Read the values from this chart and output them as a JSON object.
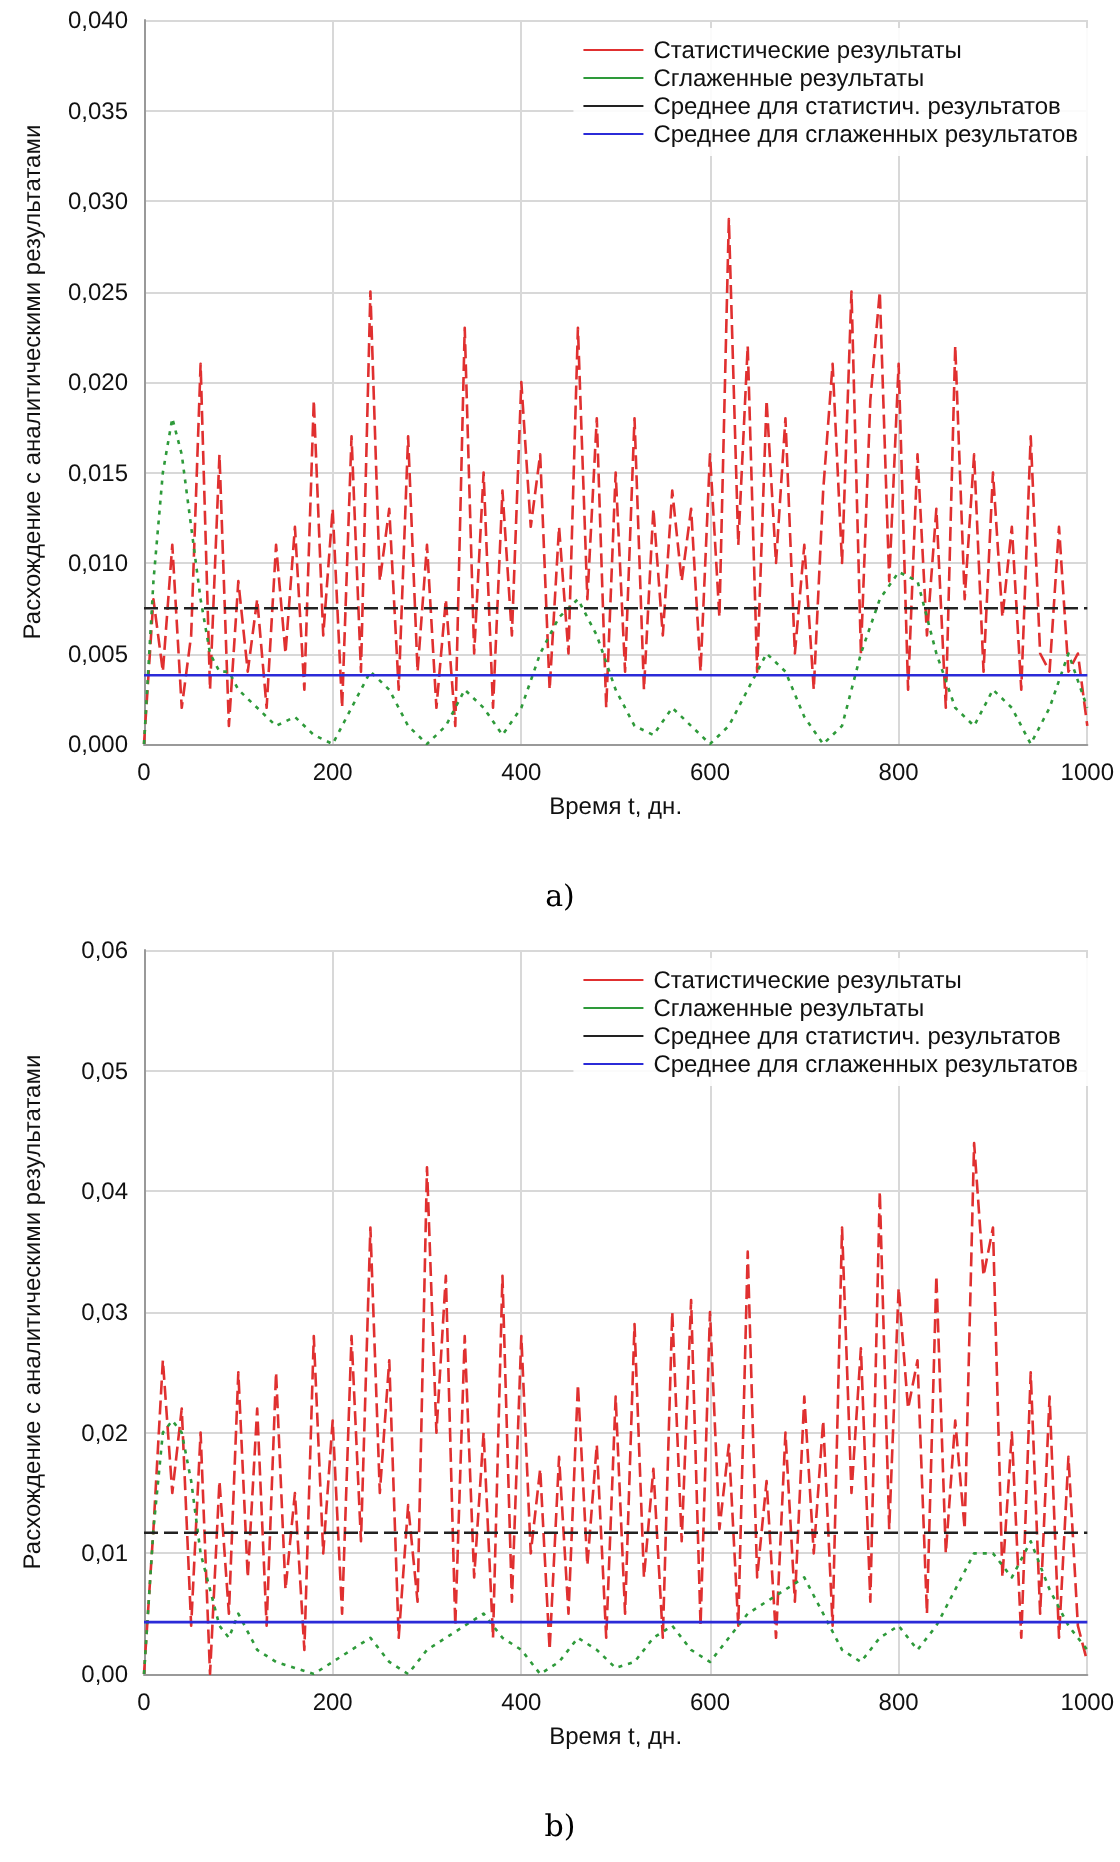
{
  "chart_data": [
    {
      "type": "line",
      "xlabel": "Время t, дн.",
      "ylabel": "Расхождение с аналитическими результатами",
      "annotations": [
        "a)"
      ],
      "xlim": [
        0,
        1000
      ],
      "xticks": [
        0,
        200,
        400,
        600,
        800,
        1000
      ],
      "ylim": [
        0,
        0.04
      ],
      "yticks": [
        {
          "value": 0,
          "label": "0,000"
        },
        {
          "value": 0.005,
          "label": "0,005"
        },
        {
          "value": 0.01,
          "label": "0,010"
        },
        {
          "value": 0.015,
          "label": "0,015"
        },
        {
          "value": 0.02,
          "label": "0,020"
        },
        {
          "value": 0.025,
          "label": "0,025"
        },
        {
          "value": 0.03,
          "label": "0,030"
        },
        {
          "value": 0.035,
          "label": "0,035"
        },
        {
          "value": 0.04,
          "label": "0,040"
        }
      ],
      "grid": true,
      "legend": "top right",
      "marker": "none",
      "series": [
        {
          "name": "Статистические результаты",
          "color": "#e03030",
          "line_style": "dashed",
          "x": [
            0,
            10,
            20,
            30,
            40,
            50,
            60,
            70,
            80,
            90,
            100,
            110,
            120,
            130,
            140,
            150,
            160,
            170,
            180,
            190,
            200,
            210,
            220,
            230,
            240,
            250,
            260,
            270,
            280,
            290,
            300,
            310,
            320,
            330,
            340,
            350,
            360,
            370,
            380,
            390,
            400,
            410,
            420,
            430,
            440,
            450,
            460,
            470,
            480,
            490,
            500,
            510,
            520,
            530,
            540,
            550,
            560,
            570,
            580,
            590,
            600,
            610,
            620,
            630,
            640,
            650,
            660,
            670,
            680,
            690,
            700,
            710,
            720,
            730,
            740,
            750,
            760,
            770,
            780,
            790,
            800,
            810,
            820,
            830,
            840,
            850,
            860,
            870,
            880,
            890,
            900,
            910,
            920,
            930,
            940,
            950,
            960,
            970,
            980,
            990,
            1000
          ],
          "values": [
            0,
            0.008,
            0.004,
            0.011,
            0.002,
            0.006,
            0.021,
            0.003,
            0.016,
            0.001,
            0.009,
            0.004,
            0.008,
            0.002,
            0.011,
            0.005,
            0.012,
            0.003,
            0.019,
            0.006,
            0.013,
            0.002,
            0.017,
            0.004,
            0.025,
            0.009,
            0.013,
            0.003,
            0.017,
            0.004,
            0.011,
            0.002,
            0.008,
            0.001,
            0.023,
            0.005,
            0.015,
            0.002,
            0.014,
            0.006,
            0.02,
            0.012,
            0.016,
            0.003,
            0.012,
            0.005,
            0.023,
            0.008,
            0.018,
            0.002,
            0.015,
            0.004,
            0.018,
            0.003,
            0.013,
            0.006,
            0.014,
            0.009,
            0.013,
            0.004,
            0.016,
            0.007,
            0.029,
            0.011,
            0.022,
            0.004,
            0.019,
            0.01,
            0.018,
            0.005,
            0.011,
            0.003,
            0.014,
            0.021,
            0.01,
            0.025,
            0.005,
            0.019,
            0.025,
            0.009,
            0.021,
            0.003,
            0.016,
            0.006,
            0.013,
            0.002,
            0.022,
            0.008,
            0.016,
            0.004,
            0.015,
            0.007,
            0.012,
            0.003,
            0.017,
            0.005,
            0.004,
            0.012,
            0.004,
            0.005,
            0.001
          ]
        },
        {
          "name": "Сглаженные результаты",
          "color": "#2e9a3a",
          "line_style": "dotted",
          "x": [
            0,
            10,
            20,
            30,
            40,
            50,
            60,
            70,
            80,
            90,
            100,
            120,
            140,
            160,
            180,
            200,
            220,
            240,
            260,
            280,
            300,
            320,
            340,
            360,
            380,
            400,
            420,
            440,
            460,
            480,
            500,
            520,
            540,
            560,
            580,
            600,
            620,
            640,
            660,
            680,
            700,
            720,
            740,
            760,
            780,
            800,
            820,
            840,
            860,
            880,
            900,
            920,
            940,
            960,
            980,
            1000
          ],
          "values": [
            0,
            0.009,
            0.015,
            0.018,
            0.016,
            0.012,
            0.008,
            0.005,
            0.004,
            0.004,
            0.003,
            0.002,
            0.001,
            0.0015,
            0.0005,
            0,
            0.002,
            0.004,
            0.003,
            0.001,
            0,
            0.001,
            0.003,
            0.002,
            0.0005,
            0.002,
            0.005,
            0.007,
            0.008,
            0.006,
            0.003,
            0.001,
            0.0005,
            0.002,
            0.001,
            0,
            0.001,
            0.003,
            0.005,
            0.004,
            0.0015,
            0,
            0.001,
            0.005,
            0.008,
            0.0095,
            0.009,
            0.005,
            0.002,
            0.001,
            0.003,
            0.002,
            0,
            0.002,
            0.005,
            0.002
          ]
        },
        {
          "name": "Среднее для статистич. результатов",
          "color": "#222222",
          "line_style": "dashed",
          "x": [
            0,
            1000
          ],
          "values": [
            0.0075,
            0.0075
          ]
        },
        {
          "name": "Среднее для сглаженных результатов",
          "color": "#2b2bd8",
          "line_style": "solid",
          "x": [
            0,
            1000
          ],
          "values": [
            0.0038,
            0.0038
          ]
        }
      ]
    },
    {
      "type": "line",
      "xlabel": "Время t, дн.",
      "ylabel": "Расхождение с аналитическими результатами",
      "annotations": [
        "b)"
      ],
      "xlim": [
        0,
        1000
      ],
      "xticks": [
        0,
        200,
        400,
        600,
        800,
        1000
      ],
      "ylim": [
        0,
        0.06
      ],
      "yticks": [
        {
          "value": 0,
          "label": "0,00"
        },
        {
          "value": 0.01,
          "label": "0,01"
        },
        {
          "value": 0.02,
          "label": "0,02"
        },
        {
          "value": 0.03,
          "label": "0,03"
        },
        {
          "value": 0.04,
          "label": "0,04"
        },
        {
          "value": 0.05,
          "label": "0,05"
        },
        {
          "value": 0.06,
          "label": "0,06"
        }
      ],
      "grid": true,
      "legend": "top right",
      "marker": "none",
      "series": [
        {
          "name": "Статистические результаты",
          "color": "#e03030",
          "line_style": "dashed",
          "x": [
            0,
            10,
            20,
            30,
            40,
            50,
            60,
            70,
            80,
            90,
            100,
            110,
            120,
            130,
            140,
            150,
            160,
            170,
            180,
            190,
            200,
            210,
            220,
            230,
            240,
            250,
            260,
            270,
            280,
            290,
            300,
            310,
            320,
            330,
            340,
            350,
            360,
            370,
            380,
            390,
            400,
            410,
            420,
            430,
            440,
            450,
            460,
            470,
            480,
            490,
            500,
            510,
            520,
            530,
            540,
            550,
            560,
            570,
            580,
            590,
            600,
            610,
            620,
            630,
            640,
            650,
            660,
            670,
            680,
            690,
            700,
            710,
            720,
            730,
            740,
            750,
            760,
            770,
            780,
            790,
            800,
            810,
            820,
            830,
            840,
            850,
            860,
            870,
            880,
            890,
            900,
            910,
            920,
            930,
            940,
            950,
            960,
            970,
            980,
            990,
            1000
          ],
          "values": [
            0,
            0.012,
            0.026,
            0.015,
            0.022,
            0.004,
            0.02,
            0,
            0.016,
            0.005,
            0.025,
            0.008,
            0.022,
            0.004,
            0.025,
            0.007,
            0.015,
            0.002,
            0.028,
            0.01,
            0.021,
            0.005,
            0.028,
            0.011,
            0.037,
            0.015,
            0.026,
            0.003,
            0.014,
            0.006,
            0.042,
            0.02,
            0.033,
            0.004,
            0.028,
            0.008,
            0.02,
            0.003,
            0.033,
            0.006,
            0.028,
            0.01,
            0.017,
            0.002,
            0.018,
            0.005,
            0.024,
            0.009,
            0.019,
            0.003,
            0.023,
            0.005,
            0.029,
            0.008,
            0.017,
            0.003,
            0.03,
            0.011,
            0.031,
            0.004,
            0.03,
            0.012,
            0.019,
            0.004,
            0.035,
            0.008,
            0.016,
            0.003,
            0.02,
            0.006,
            0.023,
            0.01,
            0.021,
            0.004,
            0.037,
            0.015,
            0.027,
            0.006,
            0.04,
            0.012,
            0.032,
            0.022,
            0.026,
            0.005,
            0.033,
            0.01,
            0.021,
            0.012,
            0.044,
            0.033,
            0.037,
            0.008,
            0.02,
            0.003,
            0.025,
            0.005,
            0.023,
            0.003,
            0.018,
            0.004,
            0.001
          ]
        },
        {
          "name": "Сглаженные результаты",
          "color": "#2e9a3a",
          "line_style": "dotted",
          "x": [
            0,
            10,
            20,
            30,
            40,
            50,
            60,
            70,
            80,
            90,
            100,
            120,
            140,
            160,
            180,
            200,
            220,
            240,
            260,
            280,
            300,
            320,
            340,
            360,
            380,
            400,
            420,
            440,
            460,
            480,
            500,
            520,
            540,
            560,
            580,
            600,
            620,
            640,
            660,
            680,
            700,
            720,
            740,
            760,
            780,
            800,
            820,
            840,
            860,
            880,
            900,
            920,
            940,
            960,
            980,
            1000
          ],
          "values": [
            0,
            0.012,
            0.02,
            0.021,
            0.02,
            0.016,
            0.01,
            0.007,
            0.004,
            0.003,
            0.005,
            0.002,
            0.001,
            0.0005,
            0,
            0.001,
            0.002,
            0.003,
            0.001,
            0,
            0.002,
            0.003,
            0.004,
            0.005,
            0.003,
            0.002,
            0,
            0.001,
            0.003,
            0.002,
            0.0005,
            0.001,
            0.003,
            0.004,
            0.002,
            0.001,
            0.003,
            0.005,
            0.006,
            0.007,
            0.008,
            0.005,
            0.002,
            0.001,
            0.003,
            0.004,
            0.002,
            0.004,
            0.007,
            0.01,
            0.01,
            0.008,
            0.011,
            0.007,
            0.004,
            0.002
          ]
        },
        {
          "name": "Среднее для статистич. результатов",
          "color": "#222222",
          "line_style": "dashed",
          "x": [
            0,
            1000
          ],
          "values": [
            0.0117,
            0.0117
          ]
        },
        {
          "name": "Среднее для сглаженных результатов",
          "color": "#2b2bd8",
          "line_style": "solid",
          "x": [
            0,
            1000
          ],
          "values": [
            0.0043,
            0.0043
          ]
        }
      ]
    }
  ]
}
